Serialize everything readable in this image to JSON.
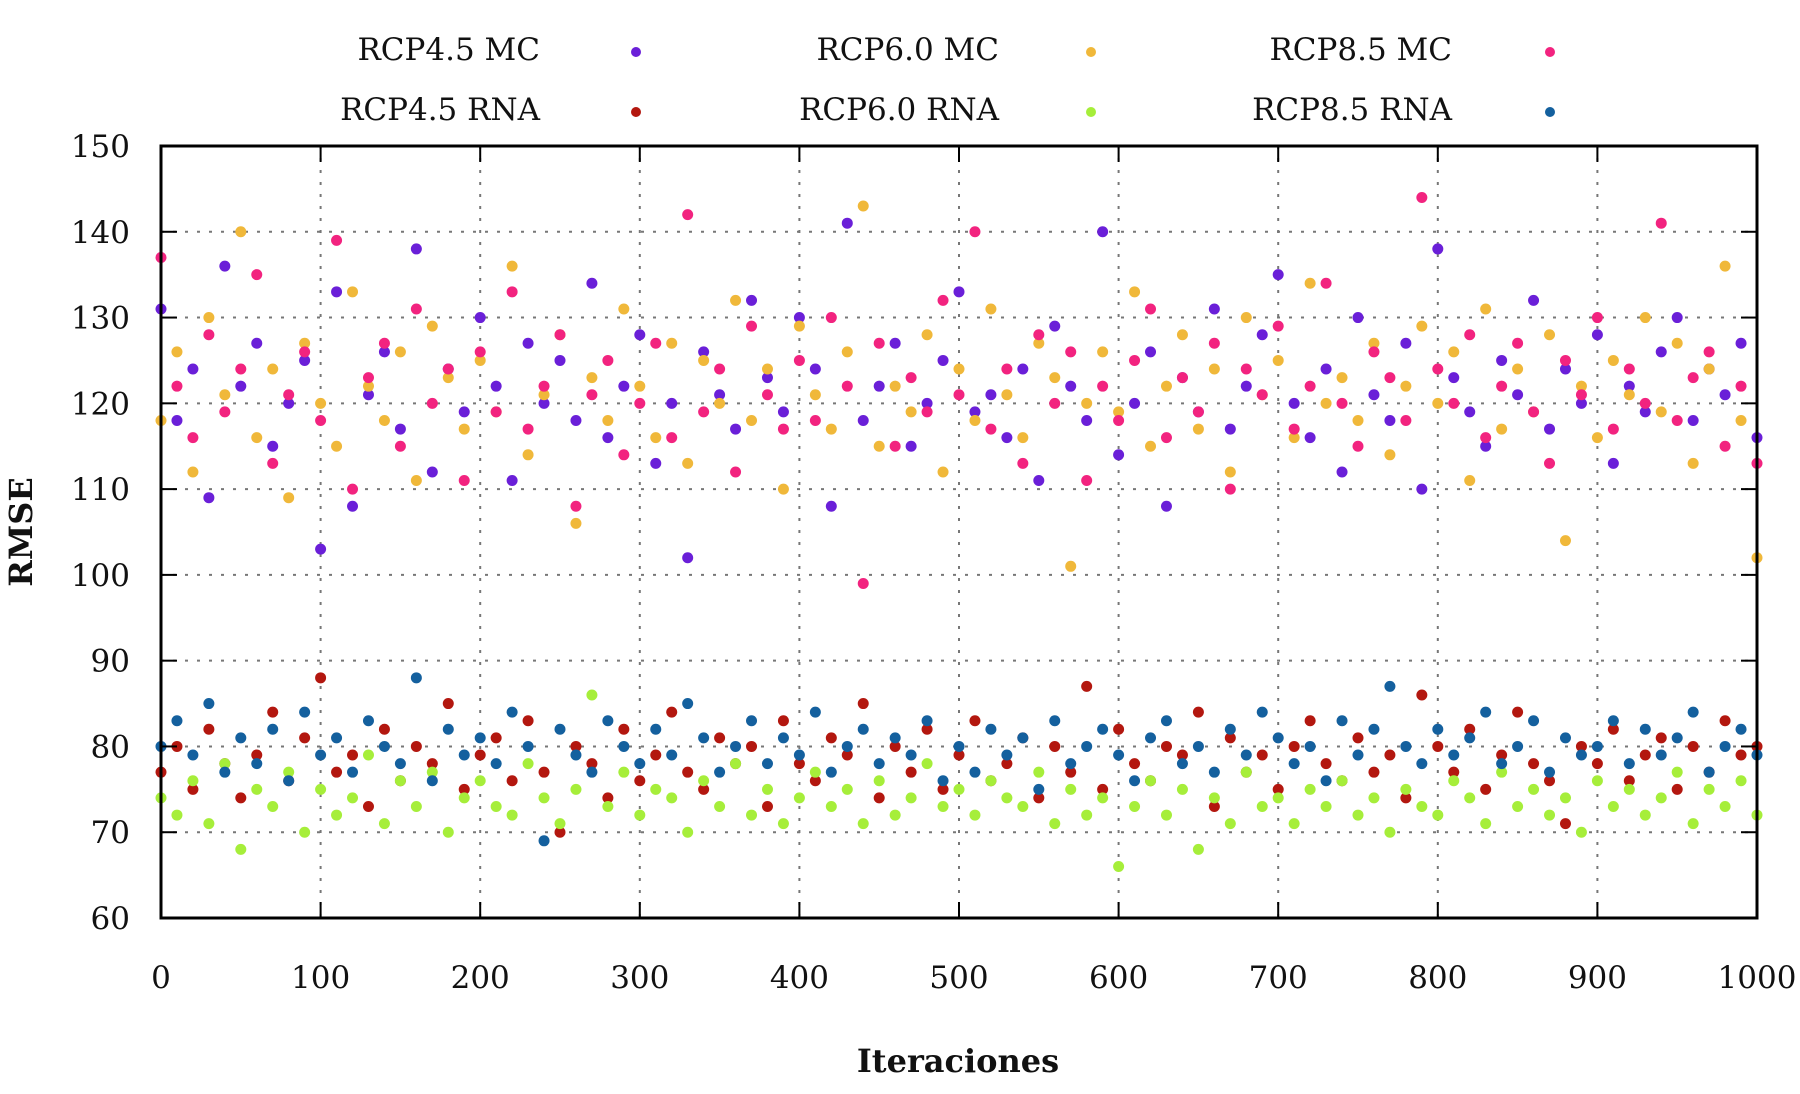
{
  "chart_data": {
    "type": "scatter",
    "title": "",
    "xlabel": "Iteraciones",
    "ylabel": "RMSE",
    "xlim": [
      0,
      1000
    ],
    "ylim": [
      60,
      150
    ],
    "x_ticks": [
      "0",
      "100",
      "200",
      "300",
      "400",
      "500",
      "600",
      "700",
      "800",
      "900",
      "1000"
    ],
    "y_ticks": [
      "60",
      "70",
      "80",
      "90",
      "100",
      "110",
      "120",
      "130",
      "140",
      "150"
    ],
    "grid": true,
    "legend_position": "top",
    "x_start": 0,
    "x_step": 10,
    "series": [
      {
        "name": "RCP4.5 MC",
        "color": "#6a1fd8",
        "values": [
          131,
          118,
          124,
          109,
          136,
          122,
          127,
          115,
          120,
          125,
          103,
          133,
          108,
          121,
          126,
          117,
          138,
          112,
          124,
          119,
          130,
          122,
          111,
          127,
          120,
          125,
          118,
          134,
          116,
          122,
          128,
          113,
          120,
          102,
          126,
          121,
          117,
          132,
          123,
          119,
          130,
          124,
          108,
          141,
          118,
          122,
          127,
          115,
          120,
          125,
          133,
          119,
          121,
          116,
          124,
          111,
          129,
          122,
          118,
          140,
          114,
          120,
          126,
          108,
          123,
          119,
          131,
          117,
          122,
          128,
          135,
          120,
          116,
          124,
          112,
          130,
          121,
          118,
          127,
          110,
          138,
          123,
          119,
          115,
          125,
          121,
          132,
          117,
          124,
          120,
          128,
          113,
          122,
          119,
          126,
          130,
          118,
          124,
          121,
          127,
          116
        ]
      },
      {
        "name": "RCP6.0 MC",
        "color": "#f0b83a",
        "values": [
          118,
          126,
          112,
          130,
          121,
          140,
          116,
          124,
          109,
          127,
          120,
          115,
          133,
          122,
          118,
          126,
          111,
          129,
          123,
          117,
          125,
          119,
          136,
          114,
          121,
          128,
          106,
          123,
          118,
          131,
          122,
          116,
          127,
          113,
          125,
          120,
          132,
          118,
          124,
          110,
          129,
          121,
          117,
          126,
          143,
          115,
          122,
          119,
          128,
          112,
          124,
          118,
          131,
          121,
          116,
          127,
          123,
          101,
          120,
          126,
          119,
          133,
          115,
          122,
          128,
          117,
          124,
          112,
          130,
          121,
          125,
          116,
          134,
          120,
          123,
          118,
          127,
          114,
          122,
          129,
          120,
          126,
          111,
          131,
          117,
          124,
          119,
          128,
          104,
          122,
          116,
          125,
          121,
          130,
          119,
          127,
          113,
          124,
          136,
          118,
          102
        ]
      },
      {
        "name": "RCP8.5 MC",
        "color": "#f2237f",
        "values": [
          137,
          122,
          116,
          128,
          119,
          124,
          135,
          113,
          121,
          126,
          118,
          139,
          110,
          123,
          127,
          115,
          131,
          120,
          124,
          111,
          126,
          119,
          133,
          117,
          122,
          128,
          108,
          121,
          125,
          114,
          120,
          127,
          116,
          142,
          119,
          124,
          112,
          129,
          121,
          117,
          125,
          118,
          130,
          122,
          99,
          127,
          115,
          123,
          119,
          132,
          121,
          140,
          117,
          124,
          113,
          128,
          120,
          126,
          111,
          122,
          118,
          125,
          131,
          116,
          123,
          119,
          127,
          110,
          124,
          121,
          129,
          117,
          122,
          134,
          120,
          115,
          126,
          123,
          118,
          144,
          124,
          120,
          128,
          116,
          122,
          127,
          119,
          113,
          125,
          121,
          130,
          117,
          124,
          120,
          141,
          118,
          123,
          126,
          115,
          122,
          113
        ]
      },
      {
        "name": "RCP4.5 RNA",
        "color": "#b3170f",
        "values": [
          77,
          80,
          75,
          82,
          78,
          74,
          79,
          84,
          76,
          81,
          88,
          77,
          79,
          73,
          82,
          76,
          80,
          78,
          85,
          75,
          79,
          81,
          76,
          83,
          77,
          70,
          80,
          78,
          74,
          82,
          76,
          79,
          84,
          77,
          75,
          81,
          78,
          80,
          73,
          83,
          78,
          76,
          81,
          79,
          85,
          74,
          80,
          77,
          82,
          75,
          79,
          83,
          76,
          78,
          81,
          74,
          80,
          77,
          87,
          75,
          82,
          78,
          76,
          80,
          79,
          84,
          73,
          81,
          77,
          79,
          75,
          80,
          83,
          78,
          76,
          81,
          77,
          79,
          74,
          86,
          80,
          77,
          82,
          75,
          79,
          84,
          78,
          76,
          71,
          80,
          78,
          82,
          76,
          79,
          81,
          75,
          80,
          77,
          83,
          79,
          80
        ]
      },
      {
        "name": "RCP6.0 RNA",
        "color": "#a6ee3a",
        "values": [
          74,
          72,
          76,
          71,
          78,
          68,
          75,
          73,
          77,
          70,
          75,
          72,
          74,
          79,
          71,
          76,
          73,
          77,
          70,
          74,
          76,
          73,
          72,
          78,
          74,
          71,
          75,
          86,
          73,
          77,
          72,
          75,
          74,
          70,
          76,
          73,
          78,
          72,
          75,
          71,
          74,
          77,
          73,
          75,
          71,
          76,
          72,
          74,
          78,
          73,
          75,
          72,
          76,
          74,
          73,
          77,
          71,
          75,
          72,
          74,
          66,
          73,
          76,
          72,
          75,
          68,
          74,
          71,
          77,
          73,
          74,
          71,
          75,
          73,
          76,
          72,
          74,
          70,
          75,
          73,
          72,
          76,
          74,
          71,
          77,
          73,
          75,
          72,
          74,
          70,
          76,
          73,
          75,
          72,
          74,
          77,
          71,
          75,
          73,
          76,
          72
        ]
      },
      {
        "name": "RCP8.5 RNA",
        "color": "#14609e",
        "values": [
          80,
          83,
          79,
          85,
          77,
          81,
          78,
          82,
          76,
          84,
          79,
          81,
          77,
          83,
          80,
          78,
          88,
          76,
          82,
          79,
          81,
          78,
          84,
          80,
          69,
          82,
          79,
          77,
          83,
          80,
          78,
          82,
          79,
          85,
          81,
          77,
          80,
          83,
          78,
          81,
          79,
          84,
          77,
          80,
          82,
          78,
          81,
          79,
          83,
          76,
          80,
          77,
          82,
          79,
          81,
          75,
          83,
          78,
          80,
          82,
          79,
          76,
          81,
          83,
          78,
          80,
          77,
          82,
          79,
          84,
          81,
          78,
          80,
          76,
          83,
          79,
          82,
          87,
          80,
          78,
          82,
          79,
          81,
          84,
          78,
          80,
          83,
          77,
          81,
          79,
          80,
          83,
          78,
          82,
          79,
          81,
          84,
          77,
          80,
          82,
          79
        ]
      }
    ]
  }
}
